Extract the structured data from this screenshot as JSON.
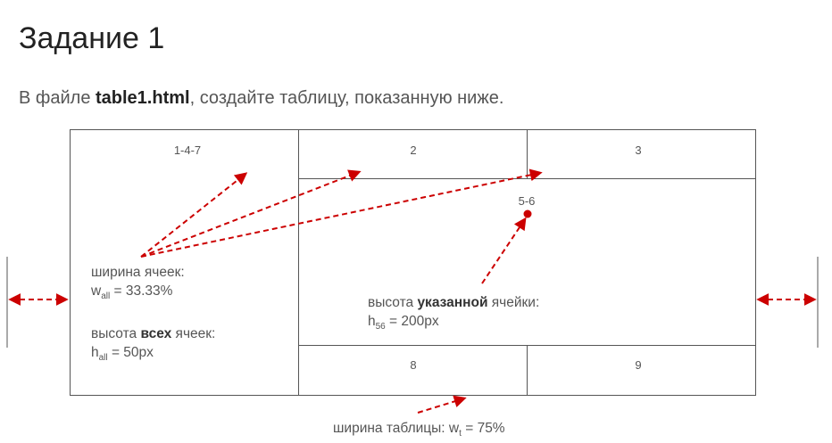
{
  "title": "Задание 1",
  "subtitle": {
    "prefix": "В файле ",
    "filename": "table1.html",
    "suffix": ", создайте таблицу, показанную ниже."
  },
  "cells": {
    "c147": "1-4-7",
    "c2": "2",
    "c3": "3",
    "c56": "5-6",
    "c8": "8",
    "c9": "9"
  },
  "notes": {
    "cell_width": {
      "label": "ширина ячеек:",
      "var": "w",
      "sub": "all",
      "value": " = 33.33%"
    },
    "all_height": {
      "prefix": "высота ",
      "bold": "всех",
      "suffix": " ячеек:",
      "var": "h",
      "sub": "all",
      "value": " = 50px"
    },
    "cell56_height": {
      "prefix": "высота ",
      "bold": "указанной",
      "suffix": " ячейки:",
      "var": "h",
      "sub": "56",
      "value": " = 200px"
    },
    "table_width": {
      "prefix": "ширина таблицы: ",
      "var": "w",
      "sub": "t",
      "value": " = 75%"
    }
  },
  "colors": {
    "arrow": "#cc0000",
    "border": "#555555",
    "text": "#555555"
  }
}
